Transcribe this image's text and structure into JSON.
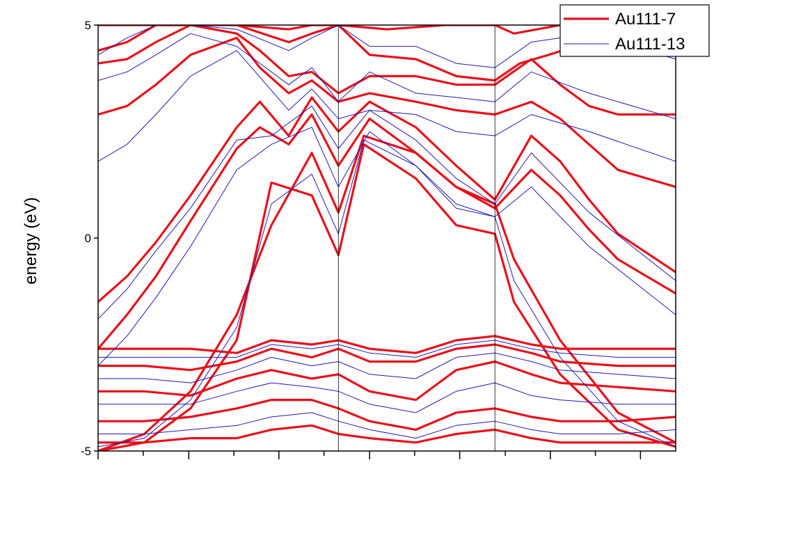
{
  "chart_data": {
    "type": "line",
    "title": "",
    "xlabel": "",
    "ylabel": "energy (eV)",
    "ylim": [
      -5,
      5
    ],
    "yticks": [
      5,
      0,
      -5
    ],
    "ytick_labels": [
      "5",
      "0",
      "-5"
    ],
    "xlim": [
      0,
      1
    ],
    "xticks": [
      0,
      0.078,
      0.157,
      0.235,
      0.313,
      0.391,
      0.47,
      0.548,
      0.626,
      0.705,
      0.783,
      0.861,
      0.939
    ],
    "vlines": [
      0.416,
      0.687
    ],
    "grid": false,
    "legend_placement": "top-right",
    "legend": [
      {
        "name": "Au111-7",
        "color": "#e8101a"
      },
      {
        "name": "Au111-13",
        "color": "#1a1ab8"
      }
    ],
    "series": [
      {
        "name": "Au111-7",
        "color": "#e8101a",
        "bands": [
          {
            "x": [
              0,
              0.08,
              0.16,
              0.24,
              0.33,
              0.37,
              0.416,
              0.5,
              0.6,
              0.687,
              0.72,
              0.8,
              0.9,
              1
            ],
            "y": [
              5,
              5,
              5,
              5,
              4.9,
              5,
              5,
              4.9,
              5,
              5,
              4.8,
              5,
              5,
              5
            ]
          },
          {
            "x": [
              0,
              0.05,
              0.1,
              0.16,
              0.24,
              0.33,
              0.37,
              0.416,
              0.47,
              0.55,
              0.62,
              0.687,
              0.73,
              0.78,
              0.85,
              0.93,
              1
            ],
            "y": [
              4.4,
              4.6,
              5,
              5,
              5,
              4.6,
              4.8,
              5,
              4.3,
              4.2,
              3.8,
              3.7,
              4.1,
              4.3,
              4.6,
              4.5,
              4.4
            ]
          },
          {
            "x": [
              0,
              0.05,
              0.1,
              0.16,
              0.24,
              0.28,
              0.33,
              0.37,
              0.416,
              0.47,
              0.55,
              0.62,
              0.687,
              0.75,
              0.8,
              0.85,
              0.9,
              1
            ],
            "y": [
              4.1,
              4.2,
              4.6,
              5,
              4.8,
              4.4,
              3.8,
              3.9,
              3.4,
              3.8,
              3.8,
              3.6,
              3.6,
              4.2,
              3.6,
              3.1,
              2.9,
              2.9
            ]
          },
          {
            "x": [
              0,
              0.05,
              0.1,
              0.16,
              0.24,
              0.28,
              0.33,
              0.37,
              0.416,
              0.47,
              0.55,
              0.62,
              0.687,
              0.75,
              0.8,
              0.85,
              0.9,
              1
            ],
            "y": [
              2.9,
              3.1,
              3.6,
              4.3,
              4.7,
              4.0,
              3.4,
              3.7,
              3.2,
              3.4,
              3.2,
              3.0,
              2.9,
              3.2,
              2.8,
              2.2,
              1.6,
              1.2
            ]
          },
          {
            "x": [
              0,
              0.05,
              0.1,
              0.16,
              0.24,
              0.28,
              0.33,
              0.37,
              0.416,
              0.47,
              0.55,
              0.62,
              0.687,
              0.75,
              0.8,
              0.85,
              0.9,
              1
            ],
            "y": [
              -1.5,
              -0.9,
              -0.1,
              1.0,
              2.6,
              3.2,
              2.4,
              3.3,
              2.5,
              3.2,
              2.6,
              1.7,
              0.9,
              2.4,
              1.8,
              0.9,
              0.1,
              -0.8
            ]
          },
          {
            "x": [
              0,
              0.05,
              0.1,
              0.16,
              0.24,
              0.28,
              0.33,
              0.37,
              0.416,
              0.47,
              0.55,
              0.62,
              0.687,
              0.75,
              0.8,
              0.85,
              0.9,
              1
            ],
            "y": [
              -2.6,
              -1.8,
              -0.9,
              0.4,
              2.1,
              2.6,
              2.2,
              2.9,
              1.7,
              2.8,
              2.0,
              1.2,
              0.7,
              1.6,
              1.0,
              0.2,
              -0.5,
              -1.3
            ]
          },
          {
            "x": [
              0,
              0.08,
              0.16,
              0.24,
              0.3,
              0.37,
              0.416,
              0.46,
              0.55,
              0.62,
              0.687,
              0.72,
              0.8,
              0.9,
              1
            ],
            "y": [
              -5,
              -4.6,
              -3.6,
              -1.8,
              0.3,
              2.0,
              0.6,
              2.4,
              2.0,
              1.2,
              0.8,
              -0.5,
              -2.4,
              -4.1,
              -4.8
            ]
          },
          {
            "x": [
              0,
              0.08,
              0.16,
              0.24,
              0.3,
              0.37,
              0.416,
              0.46,
              0.55,
              0.62,
              0.687,
              0.72,
              0.8,
              0.9,
              1
            ],
            "y": [
              -5,
              -4.8,
              -4.0,
              -2.4,
              1.3,
              1.0,
              -0.4,
              2.2,
              1.4,
              0.3,
              0.1,
              -1.5,
              -3.2,
              -4.5,
              -4.9
            ]
          },
          {
            "x": [
              0,
              0.08,
              0.16,
              0.24,
              0.3,
              0.37,
              0.416,
              0.47,
              0.55,
              0.62,
              0.687,
              0.75,
              0.8,
              0.9,
              1
            ],
            "y": [
              -2.6,
              -2.6,
              -2.6,
              -2.7,
              -2.4,
              -2.5,
              -2.4,
              -2.6,
              -2.7,
              -2.4,
              -2.3,
              -2.5,
              -2.6,
              -2.6,
              -2.6
            ]
          },
          {
            "x": [
              0,
              0.08,
              0.16,
              0.24,
              0.3,
              0.37,
              0.416,
              0.47,
              0.55,
              0.62,
              0.687,
              0.75,
              0.8,
              0.9,
              1
            ],
            "y": [
              -3.0,
              -3.0,
              -3.1,
              -2.9,
              -2.6,
              -2.8,
              -2.6,
              -2.9,
              -2.9,
              -2.6,
              -2.5,
              -2.7,
              -2.9,
              -3.0,
              -3.0
            ]
          },
          {
            "x": [
              0,
              0.08,
              0.16,
              0.24,
              0.3,
              0.37,
              0.416,
              0.47,
              0.55,
              0.62,
              0.687,
              0.75,
              0.8,
              0.9,
              1
            ],
            "y": [
              -3.6,
              -3.6,
              -3.7,
              -3.3,
              -3.1,
              -3.3,
              -3.2,
              -3.6,
              -3.8,
              -3.1,
              -2.9,
              -3.2,
              -3.4,
              -3.5,
              -3.6
            ]
          },
          {
            "x": [
              0,
              0.08,
              0.16,
              0.24,
              0.3,
              0.37,
              0.416,
              0.47,
              0.55,
              0.62,
              0.687,
              0.75,
              0.8,
              0.9,
              1
            ],
            "y": [
              -4.3,
              -4.3,
              -4.2,
              -4.0,
              -3.8,
              -3.8,
              -4.0,
              -4.3,
              -4.5,
              -4.1,
              -4.0,
              -4.2,
              -4.3,
              -4.3,
              -4.2
            ]
          },
          {
            "x": [
              0,
              0.08,
              0.16,
              0.24,
              0.3,
              0.37,
              0.416,
              0.47,
              0.55,
              0.62,
              0.687,
              0.75,
              0.8,
              0.9,
              1
            ],
            "y": [
              -4.8,
              -4.8,
              -4.7,
              -4.7,
              -4.5,
              -4.4,
              -4.6,
              -4.7,
              -4.8,
              -4.6,
              -4.5,
              -4.7,
              -4.8,
              -4.8,
              -4.8
            ]
          }
        ]
      },
      {
        "name": "Au111-13",
        "color": "#1a1ab8",
        "bands": [
          {
            "x": [
              0,
              0.05,
              0.1,
              0.16,
              0.24,
              0.33,
              0.37,
              0.416,
              0.47,
              0.55,
              0.62,
              0.687,
              0.75,
              0.85,
              1
            ],
            "y": [
              4.3,
              4.7,
              5,
              5,
              4.9,
              4.4,
              4.7,
              5,
              4.5,
              4.5,
              4.1,
              4.0,
              4.6,
              4.8,
              4.2
            ]
          },
          {
            "x": [
              0,
              0.05,
              0.1,
              0.16,
              0.24,
              0.33,
              0.37,
              0.416,
              0.47,
              0.55,
              0.62,
              0.687,
              0.75,
              0.85,
              1
            ],
            "y": [
              3.7,
              3.9,
              4.3,
              4.8,
              4.5,
              3.6,
              4.0,
              3.2,
              3.9,
              3.4,
              3.3,
              3.2,
              3.9,
              3.4,
              2.8
            ]
          },
          {
            "x": [
              0,
              0.05,
              0.1,
              0.16,
              0.24,
              0.33,
              0.37,
              0.416,
              0.47,
              0.55,
              0.62,
              0.687,
              0.75,
              0.85,
              1
            ],
            "y": [
              1.8,
              2.2,
              2.9,
              3.8,
              4.4,
              3.0,
              3.5,
              2.8,
              3.0,
              2.9,
              2.5,
              2.4,
              2.9,
              2.5,
              1.8
            ]
          },
          {
            "x": [
              0,
              0.05,
              0.1,
              0.16,
              0.24,
              0.3,
              0.37,
              0.416,
              0.47,
              0.55,
              0.62,
              0.687,
              0.75,
              0.85,
              1
            ],
            "y": [
              -1.9,
              -1.2,
              -0.3,
              0.7,
              2.3,
              2.4,
              3.1,
              2.1,
              3.0,
              2.3,
              1.4,
              0.8,
              2.0,
              0.6,
              -1.0
            ]
          },
          {
            "x": [
              0,
              0.05,
              0.1,
              0.16,
              0.24,
              0.3,
              0.37,
              0.416,
              0.47,
              0.55,
              0.62,
              0.687,
              0.75,
              0.85,
              1
            ],
            "y": [
              -3.0,
              -2.3,
              -1.4,
              -0.2,
              1.6,
              2.2,
              2.6,
              1.2,
              2.5,
              1.7,
              0.7,
              0.5,
              1.2,
              -0.2,
              -1.8
            ]
          },
          {
            "x": [
              0,
              0.08,
              0.16,
              0.24,
              0.3,
              0.37,
              0.416,
              0.46,
              0.55,
              0.62,
              0.687,
              0.72,
              0.8,
              0.9,
              1
            ],
            "y": [
              -4.9,
              -4.7,
              -3.8,
              -2.1,
              0.8,
              1.5,
              0.1,
              2.3,
              1.7,
              0.8,
              0.5,
              -1.0,
              -2.8,
              -4.3,
              -4.9
            ]
          },
          {
            "x": [
              0,
              0.08,
              0.16,
              0.24,
              0.3,
              0.37,
              0.416,
              0.47,
              0.55,
              0.62,
              0.687,
              0.75,
              0.8,
              0.9,
              1
            ],
            "y": [
              -2.8,
              -2.8,
              -2.8,
              -2.8,
              -2.5,
              -2.6,
              -2.5,
              -2.7,
              -2.8,
              -2.5,
              -2.4,
              -2.6,
              -2.7,
              -2.8,
              -2.8
            ]
          },
          {
            "x": [
              0,
              0.08,
              0.16,
              0.24,
              0.3,
              0.37,
              0.416,
              0.47,
              0.55,
              0.62,
              0.687,
              0.75,
              0.8,
              0.9,
              1
            ],
            "y": [
              -3.3,
              -3.3,
              -3.4,
              -3.1,
              -2.8,
              -3.0,
              -2.9,
              -3.2,
              -3.3,
              -2.8,
              -2.7,
              -2.9,
              -3.1,
              -3.2,
              -3.3
            ]
          },
          {
            "x": [
              0,
              0.08,
              0.16,
              0.24,
              0.3,
              0.37,
              0.416,
              0.47,
              0.55,
              0.62,
              0.687,
              0.75,
              0.8,
              0.9,
              1
            ],
            "y": [
              -3.9,
              -3.9,
              -3.9,
              -3.6,
              -3.4,
              -3.5,
              -3.6,
              -3.9,
              -4.1,
              -3.6,
              -3.4,
              -3.7,
              -3.8,
              -3.9,
              -3.9
            ]
          },
          {
            "x": [
              0,
              0.08,
              0.16,
              0.24,
              0.3,
              0.37,
              0.416,
              0.47,
              0.55,
              0.62,
              0.687,
              0.75,
              0.8,
              0.9,
              1
            ],
            "y": [
              -4.6,
              -4.6,
              -4.5,
              -4.4,
              -4.2,
              -4.1,
              -4.3,
              -4.5,
              -4.7,
              -4.4,
              -4.3,
              -4.5,
              -4.6,
              -4.6,
              -4.5
            ]
          }
        ]
      }
    ]
  }
}
